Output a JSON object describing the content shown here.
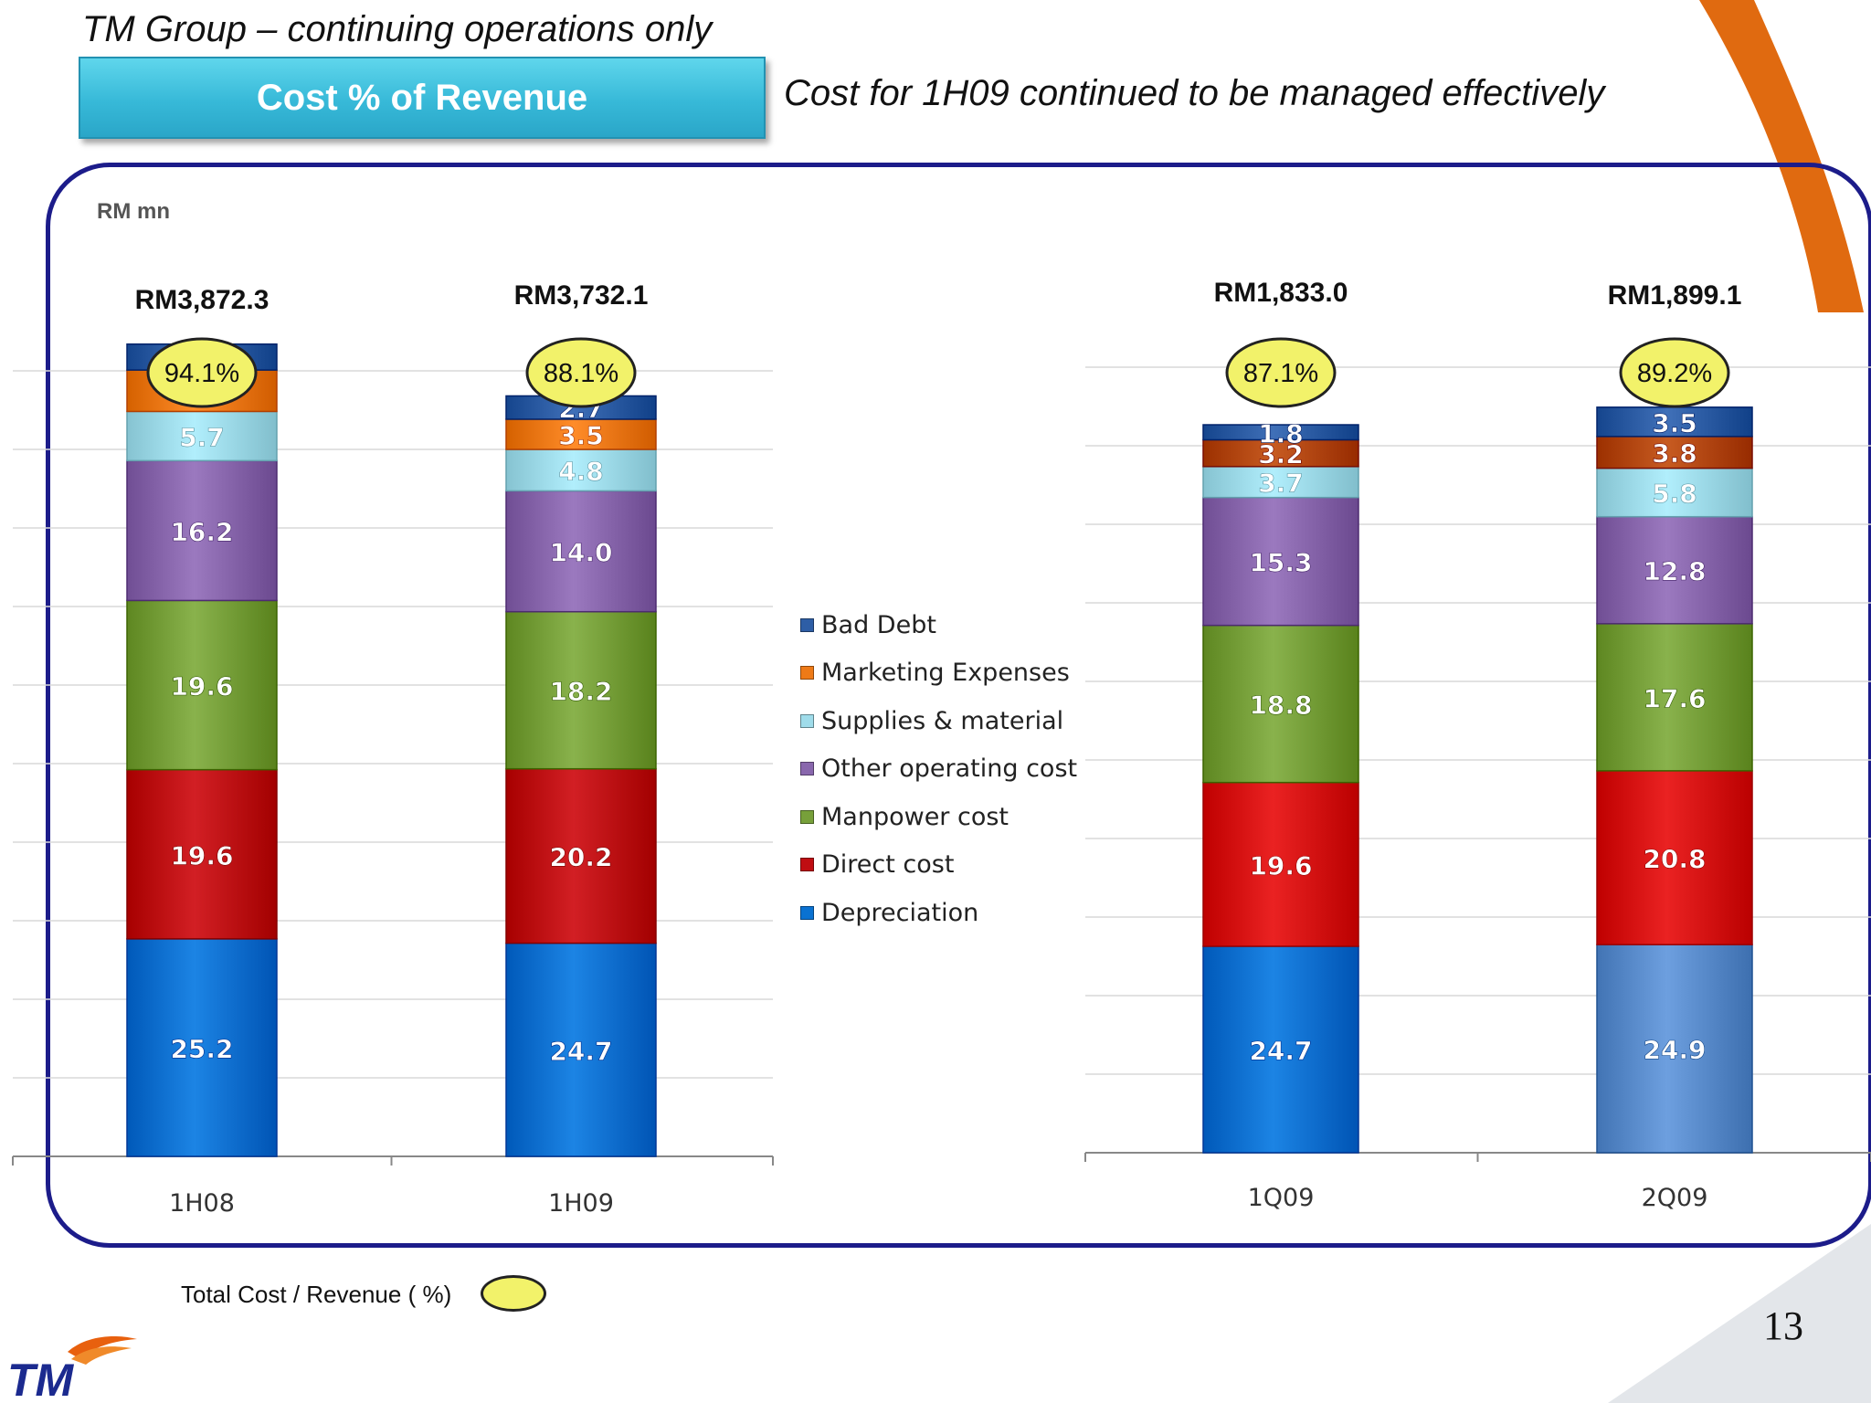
{
  "slide": {
    "subtitle": "TM Group – continuing operations only",
    "title_box": "Cost % of Revenue",
    "headline": "Cost for 1H09 continued to be managed effectively",
    "unit_label": "RM mn",
    "key_label": "Total Cost / Revenue  ( %)",
    "page_number": "13",
    "logo_text": "TM"
  },
  "colors": {
    "frame": "#1c1c8a",
    "title_box": "#37b9d8",
    "ratio_bubble": "#f2f26a",
    "accent_orange": "#e06a10"
  },
  "chart_data": [
    {
      "type": "bar",
      "stacked": true,
      "categories": [
        "1H08",
        "1H09"
      ],
      "totals": [
        "RM3,872.3",
        "RM3,732.1"
      ],
      "ratios": [
        "94.1%",
        "88.1%"
      ],
      "series": [
        {
          "name": "Depreciation",
          "color": "#0a72d2",
          "values": [
            25.2,
            24.7
          ]
        },
        {
          "name": "Direct cost",
          "color": "#c00d12",
          "values": [
            19.6,
            20.2
          ]
        },
        {
          "name": "Manpower cost",
          "color": "#77a03a",
          "values": [
            19.6,
            18.2
          ]
        },
        {
          "name": "Other operating cost",
          "color": "#8967ad",
          "values": [
            16.2,
            14.0
          ]
        },
        {
          "name": "Supplies & material",
          "color": "#9fdcea",
          "values": [
            5.7,
            4.8
          ]
        },
        {
          "name": "Marketing Expenses",
          "color": "#ee7a17",
          "values": [
            4.8,
            3.5
          ]
        },
        {
          "name": "Bad Debt",
          "color": "#2e5ea6",
          "values": [
            3.0,
            2.7
          ]
        }
      ],
      "grid": true,
      "legend": "between charts"
    },
    {
      "type": "bar",
      "stacked": true,
      "categories": [
        "1Q09",
        "2Q09"
      ],
      "totals": [
        "RM1,833.0",
        "RM1,899.1"
      ],
      "ratios": [
        "87.1%",
        "89.2%"
      ],
      "series": [
        {
          "name": "Depreciation",
          "color": "#0a72d2",
          "values": [
            24.7,
            24.9
          ],
          "colors": [
            "#0a72d2",
            "#5b8dcd"
          ]
        },
        {
          "name": "Direct cost",
          "color": "#d81010",
          "values": [
            19.6,
            20.8
          ]
        },
        {
          "name": "Manpower cost",
          "color": "#77a03a",
          "values": [
            18.8,
            17.6
          ]
        },
        {
          "name": "Other operating cost",
          "color": "#8967ad",
          "values": [
            15.3,
            12.8
          ]
        },
        {
          "name": "Supplies & material",
          "color": "#9fdcea",
          "values": [
            3.7,
            5.8
          ]
        },
        {
          "name": "Marketing Expenses",
          "color": "#b5490f",
          "values": [
            3.2,
            3.8
          ]
        },
        {
          "name": "Bad Debt",
          "color": "#2e5ea6",
          "values": [
            1.8,
            3.5
          ]
        }
      ],
      "grid": true
    }
  ],
  "legend": [
    {
      "name": "Bad Debt",
      "color": "#2e5ea6"
    },
    {
      "name": "Marketing Expenses",
      "color": "#ee7a17"
    },
    {
      "name": "Supplies & material",
      "color": "#9fdcea"
    },
    {
      "name": "Other operating cost",
      "color": "#8967ad"
    },
    {
      "name": "Manpower cost",
      "color": "#77a03a"
    },
    {
      "name": "Direct cost",
      "color": "#c00d12"
    },
    {
      "name": "Depreciation",
      "color": "#0a72d2"
    }
  ]
}
